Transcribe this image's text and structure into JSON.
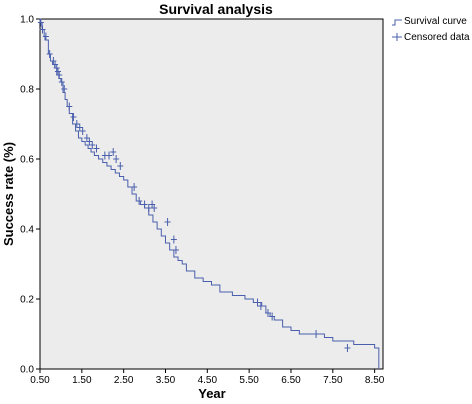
{
  "chart_data": {
    "type": "line",
    "title": "Survival analysis",
    "xlabel": "Year",
    "ylabel": "Success rate (%)",
    "xlim": [
      0.5,
      8.7
    ],
    "ylim": [
      0,
      1.0
    ],
    "xticks": [
      0.5,
      1.5,
      2.5,
      3.5,
      4.5,
      5.5,
      6.5,
      7.5,
      8.5
    ],
    "xtick_labels": [
      "0.50",
      "1.50",
      "2.50",
      "3.50",
      "4.50",
      "5.50",
      "6.50",
      "7.50",
      "8.50"
    ],
    "yticks": [
      0,
      0.2,
      0.4,
      0.6,
      0.8,
      1.0
    ],
    "ytick_labels": [
      "0.0",
      "0.2",
      "0.4",
      "0.6",
      "0.8",
      "1.0"
    ],
    "grid": false,
    "legend_position": "top-right-outside",
    "plot_background": "#ececec",
    "series": [
      {
        "name": "Survival curve",
        "color": "#4a5fad",
        "step": true,
        "x": [
          0.5,
          0.55,
          0.6,
          0.62,
          0.7,
          0.75,
          0.8,
          0.85,
          0.9,
          0.95,
          1.0,
          1.05,
          1.1,
          1.15,
          1.2,
          1.28,
          1.35,
          1.42,
          1.5,
          1.58,
          1.65,
          1.72,
          1.8,
          1.9,
          2.0,
          2.1,
          2.2,
          2.3,
          2.4,
          2.5,
          2.6,
          2.7,
          2.8,
          2.9,
          3.0,
          3.1,
          3.2,
          3.3,
          3.4,
          3.5,
          3.6,
          3.7,
          3.8,
          3.9,
          4.0,
          4.2,
          4.4,
          4.6,
          4.8,
          5.1,
          5.4,
          5.6,
          5.8,
          5.9,
          6.0,
          6.1,
          6.3,
          6.5,
          6.7,
          7.3,
          7.5,
          8.0,
          8.5,
          8.6
        ],
        "y": [
          0.99,
          0.97,
          0.95,
          0.94,
          0.9,
          0.88,
          0.87,
          0.86,
          0.84,
          0.83,
          0.82,
          0.79,
          0.77,
          0.75,
          0.73,
          0.7,
          0.68,
          0.66,
          0.65,
          0.64,
          0.63,
          0.62,
          0.61,
          0.6,
          0.59,
          0.58,
          0.57,
          0.56,
          0.55,
          0.54,
          0.52,
          0.5,
          0.48,
          0.47,
          0.46,
          0.44,
          0.42,
          0.4,
          0.38,
          0.36,
          0.34,
          0.32,
          0.31,
          0.3,
          0.28,
          0.26,
          0.25,
          0.24,
          0.22,
          0.21,
          0.2,
          0.19,
          0.18,
          0.16,
          0.15,
          0.14,
          0.12,
          0.11,
          0.1,
          0.09,
          0.08,
          0.07,
          0.06,
          0.0
        ]
      },
      {
        "name": "Censored data",
        "color": "#4a5fad",
        "marker": "cross",
        "x": [
          0.52,
          0.56,
          0.64,
          0.73,
          0.82,
          0.86,
          0.9,
          0.93,
          0.96,
          1.02,
          1.08,
          1.2,
          1.3,
          1.38,
          1.45,
          1.52,
          1.62,
          1.68,
          1.75,
          1.85,
          2.05,
          2.15,
          2.25,
          2.32,
          2.42,
          2.75,
          2.87,
          3.0,
          3.1,
          3.18,
          3.23,
          3.55,
          3.7,
          3.75,
          5.7,
          5.78,
          5.95,
          6.05,
          7.1,
          7.85
        ],
        "y": [
          0.99,
          0.97,
          0.95,
          0.9,
          0.88,
          0.87,
          0.86,
          0.85,
          0.84,
          0.82,
          0.8,
          0.75,
          0.72,
          0.7,
          0.69,
          0.68,
          0.66,
          0.65,
          0.64,
          0.63,
          0.61,
          0.61,
          0.62,
          0.6,
          0.58,
          0.52,
          0.48,
          0.47,
          0.46,
          0.47,
          0.46,
          0.42,
          0.37,
          0.34,
          0.19,
          0.18,
          0.16,
          0.15,
          0.1,
          0.06
        ]
      }
    ]
  }
}
